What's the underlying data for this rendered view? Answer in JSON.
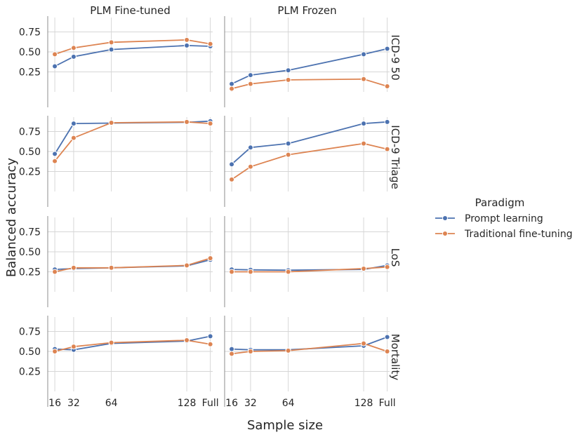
{
  "chart_data": {
    "type": "line",
    "title": "",
    "xlabel": "Sample size",
    "ylabel": "Balanced accuracy",
    "x_categories": [
      "16",
      "32",
      "64",
      "128",
      "Full"
    ],
    "x_positions": [
      16,
      32,
      64,
      128,
      148
    ],
    "x_range": [
      10,
      150
    ],
    "y_ticks": [
      "0.25",
      "0.50",
      "0.75"
    ],
    "y_range": [
      0.0,
      0.93
    ],
    "grid": true,
    "columns": [
      "PLM Fine-tuned",
      "PLM Frozen"
    ],
    "rows": [
      "ICD-9 50",
      "ICD-9 Triage",
      "LoS",
      "Mortality"
    ],
    "colors": {
      "Prompt learning": "#4c72b0",
      "Traditional fine-tuning": "#dd8452"
    },
    "legend": {
      "title": "Paradigm",
      "entries": [
        "Prompt learning",
        "Traditional fine-tuning"
      ],
      "placement": "right"
    },
    "panels": [
      {
        "row": "ICD-9 50",
        "col": "PLM Fine-tuned",
        "series": [
          {
            "name": "Prompt learning",
            "values": [
              0.32,
              0.44,
              0.53,
              0.58,
              0.57
            ]
          },
          {
            "name": "Traditional fine-tuning",
            "values": [
              0.47,
              0.55,
              0.62,
              0.65,
              0.6
            ]
          }
        ]
      },
      {
        "row": "ICD-9 50",
        "col": "PLM Frozen",
        "series": [
          {
            "name": "Prompt learning",
            "values": [
              0.1,
              0.21,
              0.27,
              0.47,
              0.54
            ]
          },
          {
            "name": "Traditional fine-tuning",
            "values": [
              0.04,
              0.1,
              0.15,
              0.16,
              0.07
            ]
          }
        ]
      },
      {
        "row": "ICD-9 Triage",
        "col": "PLM Fine-tuned",
        "series": [
          {
            "name": "Prompt learning",
            "values": [
              0.47,
              0.85,
              0.855,
              0.865,
              0.88
            ]
          },
          {
            "name": "Traditional fine-tuning",
            "values": [
              0.38,
              0.67,
              0.86,
              0.87,
              0.85
            ]
          }
        ]
      },
      {
        "row": "ICD-9 Triage",
        "col": "PLM Frozen",
        "series": [
          {
            "name": "Prompt learning",
            "values": [
              0.34,
              0.55,
              0.6,
              0.85,
              0.87
            ]
          },
          {
            "name": "Traditional fine-tuning",
            "values": [
              0.15,
              0.31,
              0.46,
              0.6,
              0.53
            ]
          }
        ]
      },
      {
        "row": "LoS",
        "col": "PLM Fine-tuned",
        "series": [
          {
            "name": "Prompt learning",
            "values": [
              0.28,
              0.29,
              0.3,
              0.325,
              0.4
            ]
          },
          {
            "name": "Traditional fine-tuning",
            "values": [
              0.25,
              0.3,
              0.3,
              0.33,
              0.42
            ]
          }
        ]
      },
      {
        "row": "LoS",
        "col": "PLM Frozen",
        "series": [
          {
            "name": "Prompt learning",
            "values": [
              0.28,
              0.275,
              0.27,
              0.28,
              0.33
            ]
          },
          {
            "name": "Traditional fine-tuning",
            "values": [
              0.25,
              0.25,
              0.25,
              0.29,
              0.31
            ]
          }
        ]
      },
      {
        "row": "Mortality",
        "col": "PLM Fine-tuned",
        "series": [
          {
            "name": "Prompt learning",
            "values": [
              0.53,
              0.52,
              0.6,
              0.63,
              0.69
            ]
          },
          {
            "name": "Traditional fine-tuning",
            "values": [
              0.5,
              0.56,
              0.61,
              0.64,
              0.59
            ]
          }
        ]
      },
      {
        "row": "Mortality",
        "col": "PLM Frozen",
        "series": [
          {
            "name": "Prompt learning",
            "values": [
              0.53,
              0.52,
              0.52,
              0.57,
              0.68
            ]
          },
          {
            "name": "Traditional fine-tuning",
            "values": [
              0.47,
              0.5,
              0.51,
              0.6,
              0.5
            ]
          }
        ]
      }
    ]
  }
}
